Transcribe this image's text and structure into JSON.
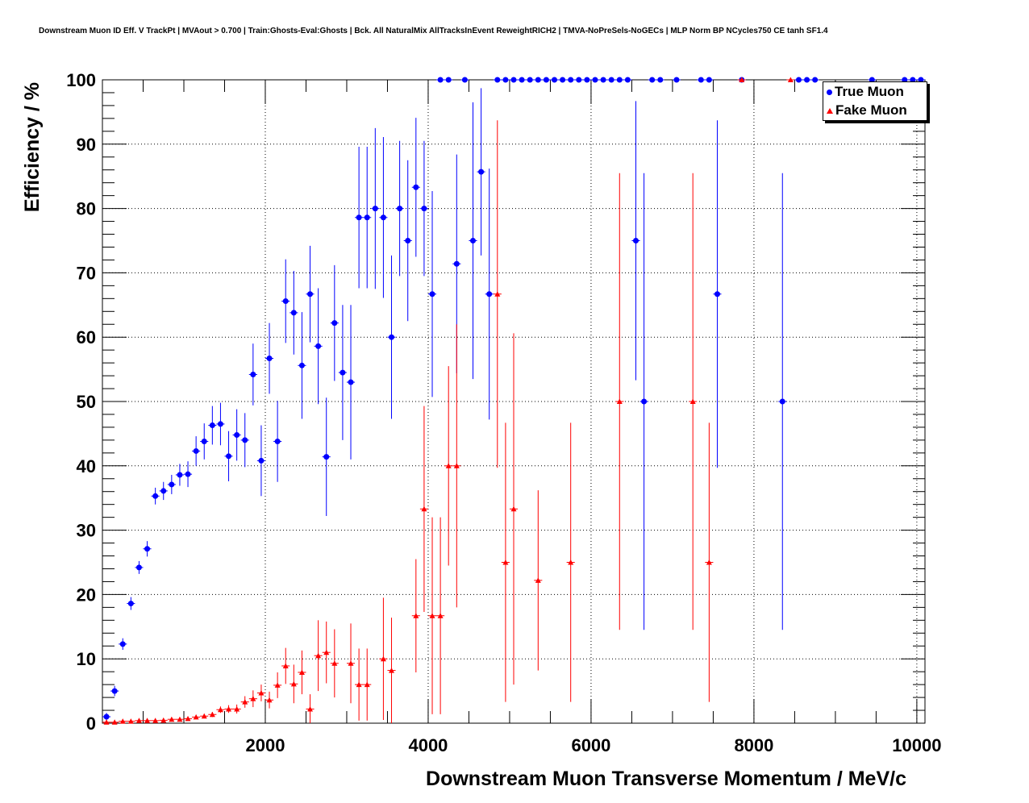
{
  "chart_data": {
    "type": "scatter",
    "title": "Downstream Muon ID Eff. V TrackPt | MVAout > 0.700 | Train:Ghosts-Eval:Ghosts | Bck. All NaturalMix AllTracksInEvent ReweightRICH2 | TMVA-NoPreSels-NoGECs | MLP Norm BP NCycles750 CE tanh SF1.4",
    "xlabel": "Downstream Muon Transverse Momentum / MeV/c",
    "ylabel": "Efficiency / %",
    "xlim": [
      0,
      10100
    ],
    "ylim": [
      0,
      100
    ],
    "xticks": [
      "2000",
      "4000",
      "6000",
      "8000",
      "10000"
    ],
    "yticks": [
      "0",
      "10",
      "20",
      "30",
      "40",
      "50",
      "60",
      "70",
      "80",
      "90",
      "100"
    ],
    "grid": true,
    "legend_position": "top-right",
    "bin_half_width": 50,
    "series": [
      {
        "name": "True Muon",
        "color": "#0000ff",
        "marker": "circle",
        "points": [
          [
            50,
            1.0,
            0.6
          ],
          [
            150,
            5.0,
            0.8
          ],
          [
            250,
            12.3,
            0.9
          ],
          [
            350,
            18.6,
            1
          ],
          [
            450,
            24.2,
            1
          ],
          [
            550,
            27.1,
            1.2
          ],
          [
            650,
            35.3,
            1.3
          ],
          [
            750,
            36.1,
            1.4
          ],
          [
            850,
            37.1,
            1.5
          ],
          [
            950,
            38.6,
            1.7
          ],
          [
            1050,
            38.7,
            2
          ],
          [
            1150,
            42.3,
            2.3
          ],
          [
            1250,
            43.8,
            2.8
          ],
          [
            1350,
            46.3,
            3
          ],
          [
            1450,
            46.5,
            3.3
          ],
          [
            1550,
            41.5,
            3.9
          ],
          [
            1650,
            44.8,
            4
          ],
          [
            1750,
            44.0,
            4.2
          ],
          [
            1850,
            54.2,
            4.8
          ],
          [
            1950,
            40.8,
            5.5
          ],
          [
            2050,
            56.7,
            5.5
          ],
          [
            2150,
            43.8,
            6.3
          ],
          [
            2250,
            65.6,
            6.5
          ],
          [
            2350,
            63.8,
            6.5
          ],
          [
            2450,
            55.6,
            8.3
          ],
          [
            2550,
            66.7,
            7.5
          ],
          [
            2650,
            58.6,
            9
          ],
          [
            2750,
            41.4,
            9.2
          ],
          [
            2850,
            62.2,
            9
          ],
          [
            2950,
            54.5,
            10.5
          ],
          [
            3050,
            53.0,
            12
          ],
          [
            3150,
            78.6,
            11
          ],
          [
            3250,
            78.6,
            11
          ],
          [
            3350,
            80.0,
            12.5
          ],
          [
            3450,
            78.6,
            12.5
          ],
          [
            3550,
            60.0,
            12.7
          ],
          [
            3650,
            80.0,
            10.5
          ],
          [
            3750,
            75.0,
            12.5
          ],
          [
            3850,
            83.3,
            10.8
          ],
          [
            3950,
            80.0,
            10.5
          ],
          [
            4050,
            66.7,
            16
          ],
          [
            4150,
            100,
            0
          ],
          [
            4250,
            100,
            0
          ],
          [
            4350,
            71.4,
            17
          ],
          [
            4450,
            100,
            0
          ],
          [
            4550,
            75.0,
            21.5
          ],
          [
            4650,
            85.7,
            13
          ],
          [
            4750,
            66.7,
            19.5
          ],
          [
            4850,
            100,
            0
          ],
          [
            4950,
            100,
            0
          ],
          [
            5050,
            100,
            0
          ],
          [
            5150,
            100,
            0
          ],
          [
            5250,
            100,
            0
          ],
          [
            5350,
            100,
            0
          ],
          [
            5450,
            100,
            0
          ],
          [
            5550,
            100,
            0
          ],
          [
            5650,
            100,
            0
          ],
          [
            5750,
            100,
            0
          ],
          [
            5850,
            100,
            0
          ],
          [
            5950,
            100,
            0
          ],
          [
            6050,
            100,
            0
          ],
          [
            6150,
            100,
            0
          ],
          [
            6250,
            100,
            0
          ],
          [
            6350,
            100,
            0
          ],
          [
            6450,
            100,
            0
          ],
          [
            6550,
            75.0,
            21.7
          ],
          [
            6650,
            50.0,
            35.5
          ],
          [
            6750,
            100,
            0
          ],
          [
            6850,
            100,
            0
          ],
          [
            7050,
            100,
            0
          ],
          [
            7350,
            100,
            0
          ],
          [
            7450,
            100,
            0
          ],
          [
            7550,
            66.7,
            27
          ],
          [
            7850,
            100,
            0
          ],
          [
            8350,
            50.0,
            35.5
          ],
          [
            8550,
            100,
            0
          ],
          [
            8650,
            100,
            0
          ],
          [
            8750,
            100,
            0
          ],
          [
            9450,
            100,
            0
          ],
          [
            9850,
            100,
            0
          ],
          [
            9950,
            100,
            0
          ],
          [
            10050,
            100,
            0
          ]
        ]
      },
      {
        "name": "Fake Muon",
        "color": "#ff0000",
        "marker": "triangle",
        "points": [
          [
            50,
            0.15,
            0.1
          ],
          [
            150,
            0.15,
            0.1
          ],
          [
            250,
            0.3,
            0.1
          ],
          [
            350,
            0.3,
            0.1
          ],
          [
            450,
            0.4,
            0.15
          ],
          [
            550,
            0.4,
            0.15
          ],
          [
            650,
            0.4,
            0.15
          ],
          [
            750,
            0.45,
            0.15
          ],
          [
            850,
            0.6,
            0.2
          ],
          [
            950,
            0.6,
            0.2
          ],
          [
            1050,
            0.7,
            0.25
          ],
          [
            1150,
            0.95,
            0.3
          ],
          [
            1250,
            1.1,
            0.35
          ],
          [
            1350,
            1.35,
            0.4
          ],
          [
            1450,
            2.1,
            0.5
          ],
          [
            1550,
            2.2,
            0.6
          ],
          [
            1650,
            2.2,
            0.7
          ],
          [
            1750,
            3.3,
            0.9
          ],
          [
            1850,
            3.8,
            1.3
          ],
          [
            1950,
            4.7,
            1.3
          ],
          [
            2050,
            3.6,
            1.3
          ],
          [
            2150,
            5.9,
            2
          ],
          [
            2250,
            8.9,
            2.8
          ],
          [
            2350,
            6.1,
            3
          ],
          [
            2450,
            7.9,
            3.4
          ],
          [
            2550,
            2.2,
            2.3
          ],
          [
            2650,
            10.5,
            5.5
          ],
          [
            2750,
            11.0,
            4.8
          ],
          [
            2850,
            9.3,
            5.3
          ],
          [
            3050,
            9.3,
            6.2
          ],
          [
            3150,
            6.0,
            5.6
          ],
          [
            3250,
            6.0,
            5.6
          ],
          [
            3450,
            10.0,
            9.5
          ],
          [
            3550,
            8.2,
            8.2
          ],
          [
            3850,
            16.7,
            8.8
          ],
          [
            3950,
            33.3,
            16
          ],
          [
            4050,
            16.7,
            15.3
          ],
          [
            4150,
            16.7,
            15.3
          ],
          [
            4250,
            40.0,
            15.5
          ],
          [
            4350,
            40.0,
            22
          ],
          [
            4850,
            66.7,
            27
          ],
          [
            4950,
            25.0,
            21.7
          ],
          [
            5050,
            33.3,
            27.3
          ],
          [
            5350,
            22.2,
            14
          ],
          [
            5750,
            25.0,
            21.7
          ],
          [
            6350,
            50.0,
            35.5
          ],
          [
            7250,
            50.0,
            35.5
          ],
          [
            7450,
            25.0,
            21.7
          ],
          [
            7850,
            100,
            0
          ],
          [
            8450,
            100,
            0
          ]
        ]
      }
    ]
  }
}
